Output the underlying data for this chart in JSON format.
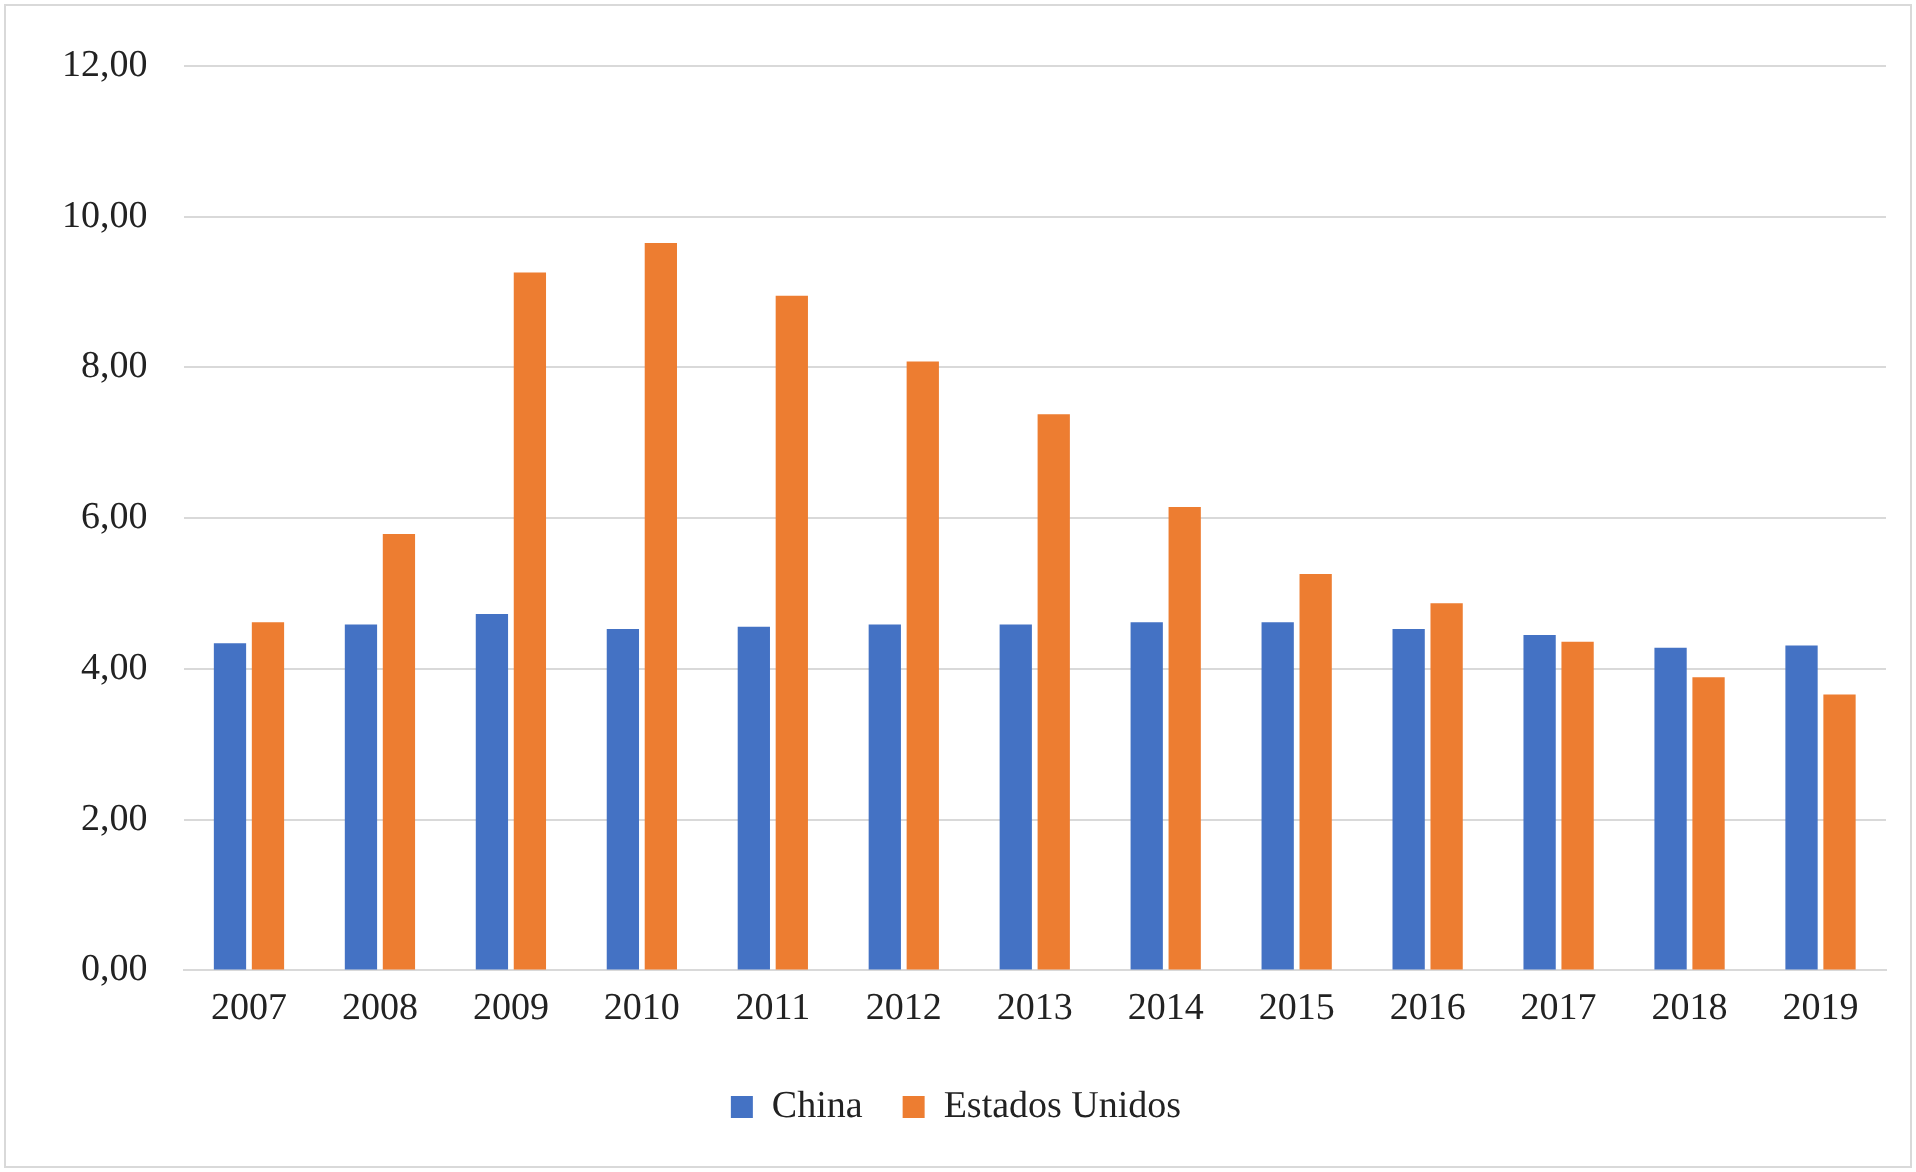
{
  "chart_data": {
    "type": "bar",
    "categories": [
      "2007",
      "2008",
      "2009",
      "2010",
      "2011",
      "2012",
      "2013",
      "2014",
      "2015",
      "2016",
      "2017",
      "2018",
      "2019"
    ],
    "series": [
      {
        "name": "China",
        "color": "#4472c4",
        "values": [
          4.34,
          4.59,
          4.73,
          4.53,
          4.56,
          4.59,
          4.59,
          4.62,
          4.62,
          4.53,
          4.45,
          4.28,
          4.31
        ]
      },
      {
        "name": "Estados Unidos",
        "color": "#ed7d31",
        "values": [
          4.62,
          5.79,
          9.26,
          9.65,
          8.95,
          8.08,
          7.38,
          6.15,
          5.26,
          4.87,
          4.36,
          3.89,
          3.66
        ]
      }
    ],
    "ylim": [
      0,
      12
    ],
    "yticks": [
      {
        "value": 0,
        "label": "0,00"
      },
      {
        "value": 2,
        "label": "2,00"
      },
      {
        "value": 4,
        "label": "4,00"
      },
      {
        "value": 6,
        "label": "6,00"
      },
      {
        "value": 8,
        "label": "8,00"
      },
      {
        "value": 10,
        "label": "10,00"
      },
      {
        "value": 12,
        "label": "12,00"
      }
    ],
    "grid": "y",
    "legend": "bottom"
  }
}
